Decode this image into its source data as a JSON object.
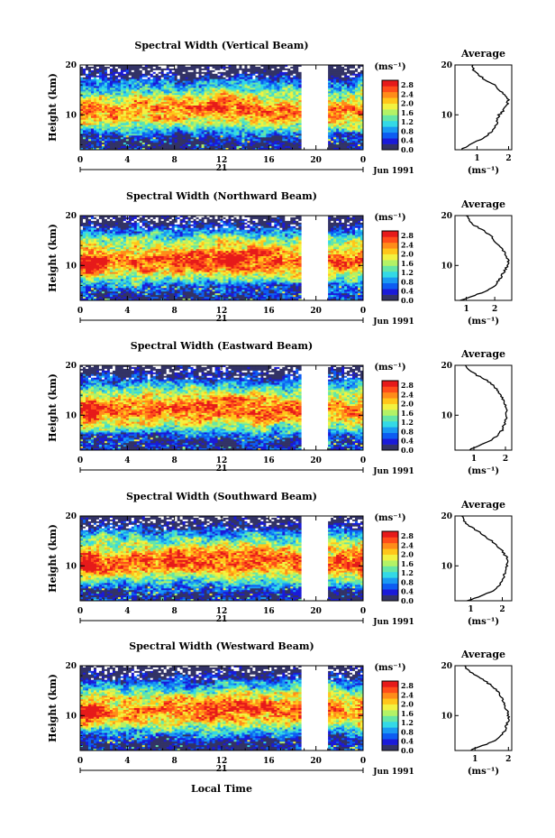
{
  "chart_data": {
    "type": "heatmap",
    "x_label": "Local Time",
    "x_ticks": [
      "0",
      "4",
      "8",
      "12",
      "16",
      "20",
      "0"
    ],
    "xlim": [
      0,
      24
    ],
    "y_label": "Height (km)",
    "y_ticks": [
      "20",
      "10"
    ],
    "ylim": [
      3,
      20
    ],
    "day_label": "21",
    "date_label": "Jun 1991",
    "data_gap_hours": [
      18.7,
      21.0
    ],
    "colorbar": {
      "unit": "(ms⁻¹)",
      "ticks": [
        "2.8",
        "2.4",
        "2.0",
        "1.6",
        "1.2",
        "0.8",
        "0.4",
        "0.0"
      ],
      "range": [
        0.0,
        3.0
      ],
      "colors": [
        "#333366",
        "#1a1ad9",
        "#0d5cf2",
        "#1a99f2",
        "#33d9e6",
        "#66e6a6",
        "#b3f266",
        "#f2f240",
        "#ffc61a",
        "#ff8c1a",
        "#ff4d1a",
        "#e61a1a"
      ]
    },
    "average_title": "Average",
    "average_unit": "(ms⁻¹)",
    "panels": [
      {
        "title": "Spectral Width (Vertical Beam)",
        "avg_xticks": [
          "1",
          "2"
        ],
        "avg_xlim": [
          0.3,
          2.1
        ],
        "avg_profile": [
          [
            3,
            0.5
          ],
          [
            4,
            0.75
          ],
          [
            5,
            1.1
          ],
          [
            6,
            1.35
          ],
          [
            7,
            1.5
          ],
          [
            8,
            1.6
          ],
          [
            9,
            1.65
          ],
          [
            10,
            1.7
          ],
          [
            11,
            1.85
          ],
          [
            12,
            1.95
          ],
          [
            13,
            1.98
          ],
          [
            14,
            1.85
          ],
          [
            15,
            1.7
          ],
          [
            16,
            1.55
          ],
          [
            17,
            1.25
          ],
          [
            18,
            1.05
          ],
          [
            19,
            0.9
          ],
          [
            20,
            0.85
          ]
        ]
      },
      {
        "title": "Spectral Width (Northward Beam)",
        "avg_xticks": [
          "1",
          "2"
        ],
        "avg_xlim": [
          0.6,
          2.6
        ],
        "avg_profile": [
          [
            3,
            0.8
          ],
          [
            4,
            1.3
          ],
          [
            5,
            1.75
          ],
          [
            6,
            2.0
          ],
          [
            7,
            2.15
          ],
          [
            8,
            2.25
          ],
          [
            9,
            2.35
          ],
          [
            10,
            2.45
          ],
          [
            11,
            2.5
          ],
          [
            12,
            2.4
          ],
          [
            13,
            2.3
          ],
          [
            14,
            2.15
          ],
          [
            15,
            2.0
          ],
          [
            16,
            1.85
          ],
          [
            17,
            1.6
          ],
          [
            18,
            1.3
          ],
          [
            19,
            1.1
          ],
          [
            20,
            1.0
          ]
        ]
      },
      {
        "title": "Spectral Width (Eastward Beam)",
        "avg_xticks": [
          "1",
          "2"
        ],
        "avg_xlim": [
          0.4,
          2.2
        ],
        "avg_profile": [
          [
            3,
            0.85
          ],
          [
            4,
            1.2
          ],
          [
            5,
            1.55
          ],
          [
            6,
            1.75
          ],
          [
            7,
            1.9
          ],
          [
            8,
            1.95
          ],
          [
            9,
            2.0
          ],
          [
            10,
            2.05
          ],
          [
            11,
            2.05
          ],
          [
            12,
            2.0
          ],
          [
            13,
            1.95
          ],
          [
            14,
            1.85
          ],
          [
            15,
            1.75
          ],
          [
            16,
            1.6
          ],
          [
            17,
            1.4
          ],
          [
            18,
            1.1
          ],
          [
            19,
            0.85
          ],
          [
            20,
            0.75
          ]
        ]
      },
      {
        "title": "Spectral Width (Southward Beam)",
        "avg_xticks": [
          "1",
          "2"
        ],
        "avg_xlim": [
          0.5,
          2.3
        ],
        "avg_profile": [
          [
            3,
            0.9
          ],
          [
            4,
            1.35
          ],
          [
            5,
            1.7
          ],
          [
            6,
            1.9
          ],
          [
            7,
            2.0
          ],
          [
            8,
            2.05
          ],
          [
            9,
            2.1
          ],
          [
            10,
            2.15
          ],
          [
            11,
            2.2
          ],
          [
            12,
            2.1
          ],
          [
            13,
            2.0
          ],
          [
            14,
            1.85
          ],
          [
            15,
            1.65
          ],
          [
            16,
            1.45
          ],
          [
            17,
            1.2
          ],
          [
            18,
            0.95
          ],
          [
            19,
            0.8
          ],
          [
            20,
            0.75
          ]
        ]
      },
      {
        "title": "Spectral Width (Westward Beam)",
        "avg_xticks": [
          "1",
          "2"
        ],
        "avg_xlim": [
          0.4,
          2.1
        ],
        "avg_profile": [
          [
            3,
            0.85
          ],
          [
            4,
            1.25
          ],
          [
            5,
            1.6
          ],
          [
            6,
            1.8
          ],
          [
            7,
            1.9
          ],
          [
            8,
            1.95
          ],
          [
            9,
            2.0
          ],
          [
            10,
            2.0
          ],
          [
            11,
            1.95
          ],
          [
            12,
            1.9
          ],
          [
            13,
            1.85
          ],
          [
            14,
            1.75
          ],
          [
            15,
            1.65
          ],
          [
            16,
            1.5
          ],
          [
            17,
            1.3
          ],
          [
            18,
            1.05
          ],
          [
            19,
            0.8
          ],
          [
            20,
            0.7
          ]
        ]
      }
    ]
  }
}
